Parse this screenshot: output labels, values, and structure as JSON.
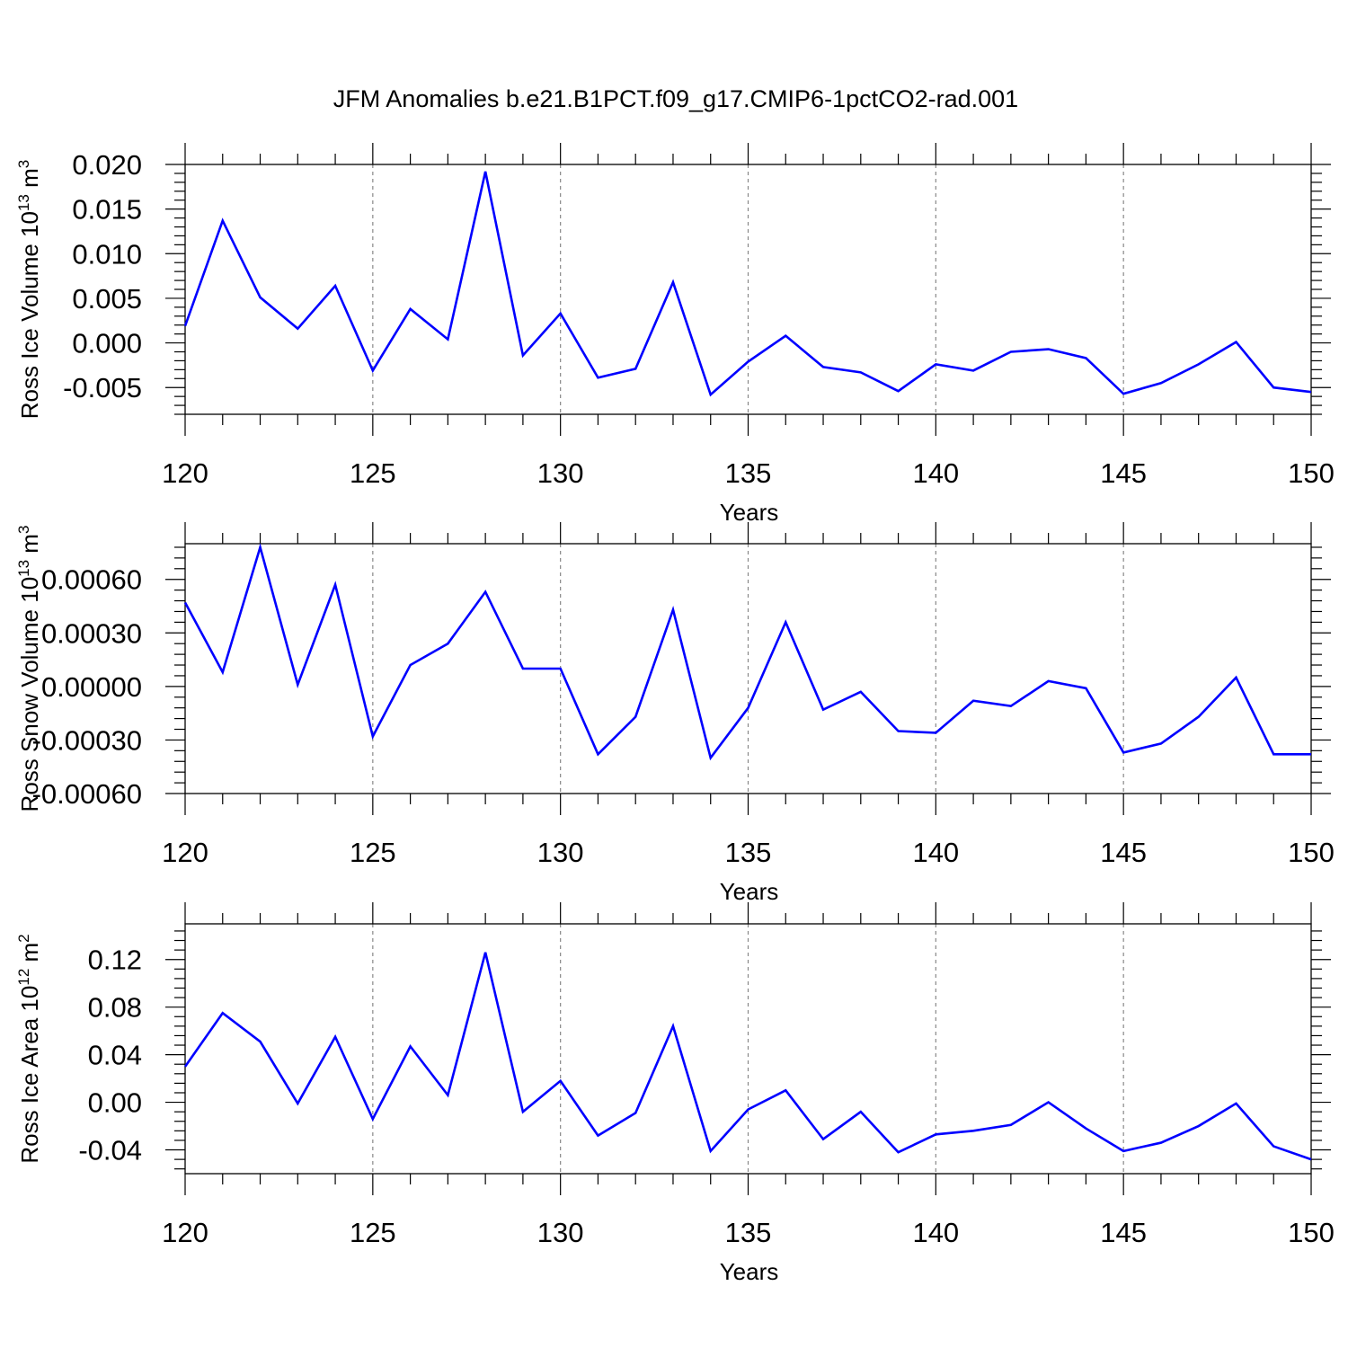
{
  "title": "JFM Anomalies b.e21.B1PCT.f09_g17.CMIP6-1pctCO2-rad.001",
  "chart_data": [
    {
      "type": "line",
      "xlabel": "Years",
      "ylabel": "Ross Ice Volume 10",
      "ylabel_sup": "13",
      "ylabel_unit": "m",
      "ylabel_unit_sup": "3",
      "xlim": [
        120,
        150
      ],
      "ylim": [
        -0.008,
        0.02
      ],
      "x_ticks": [
        120,
        125,
        130,
        135,
        140,
        145,
        150
      ],
      "y_ticks": [
        -0.005,
        0.0,
        0.005,
        0.01,
        0.015,
        0.02
      ],
      "y_tick_labels": [
        "-0.005",
        "0.000",
        "0.005",
        "0.010",
        "0.015",
        "0.020"
      ],
      "gridlines_x": [
        125,
        130,
        135,
        140,
        145
      ],
      "color": "#0000ff",
      "series": [
        {
          "x": [
            120,
            121,
            122,
            123,
            124,
            125,
            126,
            127,
            128,
            129,
            130,
            131,
            132,
            133,
            134,
            135,
            136,
            137,
            138,
            139,
            140,
            141,
            142,
            143,
            144,
            145,
            146,
            147,
            148,
            149,
            150
          ],
          "values": [
            0.0019,
            0.0137,
            0.0051,
            0.0016,
            0.0064,
            -0.0031,
            0.0038,
            0.0004,
            0.0192,
            -0.0014,
            0.0033,
            -0.0039,
            -0.0029,
            0.0068,
            -0.0058,
            -0.0021,
            0.0008,
            -0.0027,
            -0.0033,
            -0.0054,
            -0.0024,
            -0.0031,
            -0.001,
            -0.0007,
            -0.0017,
            -0.0057,
            -0.0045,
            -0.0024,
            0.0001,
            -0.005,
            -0.0055
          ]
        }
      ]
    },
    {
      "type": "line",
      "xlabel": "Years",
      "ylabel": "Ross Snow Volume 10",
      "ylabel_sup": "13",
      "ylabel_unit": "m",
      "ylabel_unit_sup": "3",
      "xlim": [
        120,
        150
      ],
      "ylim": [
        -0.0006,
        0.0008
      ],
      "x_ticks": [
        120,
        125,
        130,
        135,
        140,
        145,
        150
      ],
      "y_ticks": [
        -0.0006,
        -0.0003,
        0.0,
        0.0003,
        0.0006
      ],
      "y_tick_labels": [
        "-0.00060",
        "-0.00030",
        "0.00000",
        "0.00030",
        "0.00060"
      ],
      "gridlines_x": [
        125,
        130,
        135,
        140,
        145
      ],
      "color": "#0000ff",
      "series": [
        {
          "x": [
            120,
            121,
            122,
            123,
            124,
            125,
            126,
            127,
            128,
            129,
            130,
            131,
            132,
            133,
            134,
            135,
            136,
            137,
            138,
            139,
            140,
            141,
            142,
            143,
            144,
            145,
            146,
            147,
            148,
            149,
            150
          ],
          "values": [
            0.00047,
            8e-05,
            0.00078,
            1e-05,
            0.00057,
            -0.00028,
            0.00012,
            0.00024,
            0.00053,
            0.0001,
            0.0001,
            -0.00038,
            -0.00017,
            0.00043,
            -0.0004,
            -0.00012,
            0.00036,
            -0.00013,
            -3e-05,
            -0.00025,
            -0.00026,
            -8e-05,
            -0.00011,
            3e-05,
            -1e-05,
            -0.00037,
            -0.00032,
            -0.00017,
            5e-05,
            -0.00038,
            -0.00038
          ]
        }
      ]
    },
    {
      "type": "line",
      "xlabel": "Years",
      "ylabel": "Ross Ice Area 10",
      "ylabel_sup": "12",
      "ylabel_unit": "m",
      "ylabel_unit_sup": "2",
      "xlim": [
        120,
        150
      ],
      "ylim": [
        -0.06,
        0.15
      ],
      "x_ticks": [
        120,
        125,
        130,
        135,
        140,
        145,
        150
      ],
      "y_ticks": [
        -0.04,
        0.0,
        0.04,
        0.08,
        0.12
      ],
      "y_tick_labels": [
        "-0.04",
        "0.00",
        "0.04",
        "0.08",
        "0.12"
      ],
      "gridlines_x": [
        125,
        130,
        135,
        140,
        145
      ],
      "color": "#0000ff",
      "series": [
        {
          "x": [
            120,
            121,
            122,
            123,
            124,
            125,
            126,
            127,
            128,
            129,
            130,
            131,
            132,
            133,
            134,
            135,
            136,
            137,
            138,
            139,
            140,
            141,
            142,
            143,
            144,
            145,
            146,
            147,
            148,
            149,
            150
          ],
          "values": [
            0.03,
            0.075,
            0.051,
            -0.001,
            0.055,
            -0.014,
            0.047,
            0.006,
            0.126,
            -0.008,
            0.018,
            -0.028,
            -0.009,
            0.064,
            -0.041,
            -0.006,
            0.01,
            -0.031,
            -0.008,
            -0.042,
            -0.027,
            -0.024,
            -0.019,
            0.0,
            -0.022,
            -0.041,
            -0.034,
            -0.02,
            -0.001,
            -0.037,
            -0.048
          ]
        }
      ]
    }
  ]
}
